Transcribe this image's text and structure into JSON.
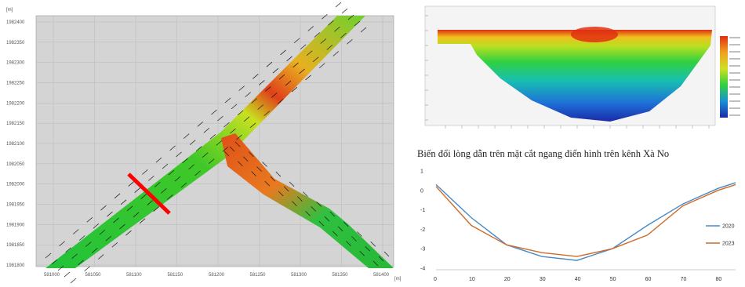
{
  "map": {
    "unit": "[m]",
    "y_ticks": [
      "1982400",
      "1982350",
      "1982300",
      "1982250",
      "1982200",
      "1982150",
      "1982100",
      "1982050",
      "1982000",
      "1981950",
      "1981900",
      "1981850",
      "1981800"
    ],
    "x_ticks": [
      "581000",
      "581050",
      "581100",
      "581150",
      "581200",
      "581250",
      "581300",
      "581350",
      "581400"
    ],
    "x_unit": "[m]",
    "colors": {
      "background": "#d4d4d4",
      "low": "#22c23a",
      "mid": "#d8e020",
      "high": "#e0401a",
      "marker": "#ff0000"
    }
  },
  "section": {
    "colors": {
      "frame": "#1230b0",
      "bottom": "#2030c0",
      "top": "#e03010"
    }
  },
  "title": "Biến đổi lòng dẫn trên mặt cắt ngang điển hình trên kênh Xà No",
  "chart_data": {
    "type": "line",
    "title": "Biến đổi lòng dẫn trên mặt cắt ngang điển hình trên kênh Xà No",
    "x_ticks": [
      "0",
      "10",
      "20",
      "30",
      "40",
      "50",
      "60",
      "70",
      "80"
    ],
    "y_ticks": [
      "1",
      "0",
      "-1",
      "-2",
      "-3",
      "-4"
    ],
    "xlim": [
      0,
      85
    ],
    "ylim": [
      -4,
      1
    ],
    "grid": false,
    "legend_position": "right",
    "series": [
      {
        "name": "2020",
        "color": "#4a8ac4",
        "x": [
          0,
          10,
          20,
          30,
          40,
          50,
          60,
          70,
          80,
          85
        ],
        "y": [
          0.3,
          -1.4,
          -2.8,
          -3.4,
          -3.6,
          -3.0,
          -1.8,
          -0.7,
          0.1,
          0.4
        ]
      },
      {
        "name": "2023",
        "color": "#d06a28",
        "x": [
          0,
          10,
          20,
          30,
          40,
          50,
          60,
          70,
          80,
          85
        ],
        "y": [
          0.2,
          -1.8,
          -2.8,
          -3.2,
          -3.4,
          -3.0,
          -2.3,
          -0.8,
          0.0,
          0.3
        ]
      }
    ]
  }
}
